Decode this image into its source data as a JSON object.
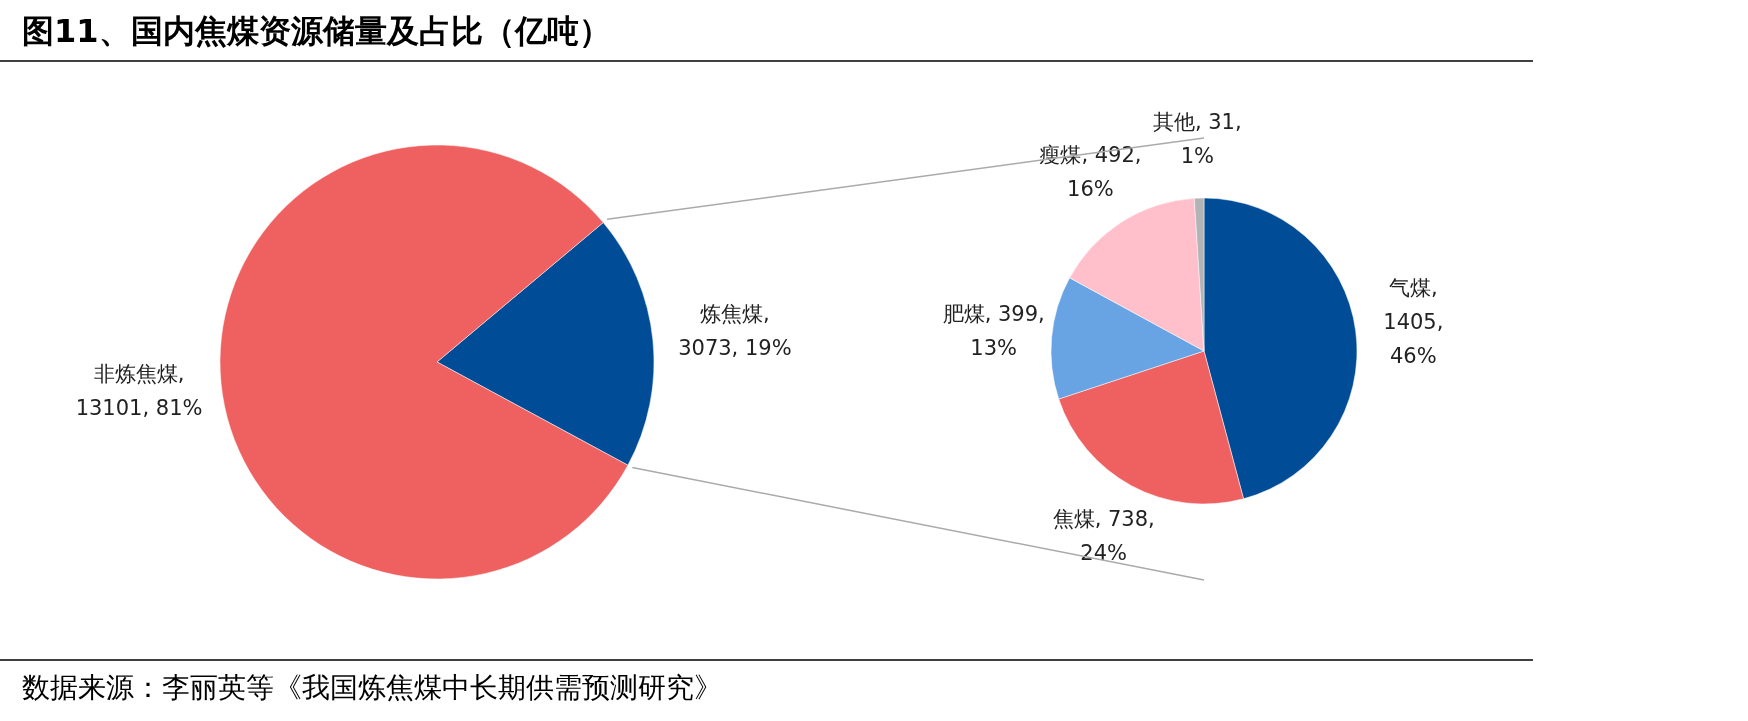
{
  "chart_data": [
    {
      "type": "pie",
      "title": "图11、国内焦煤资源储量及占比（亿吨）",
      "categories": [
        "炼焦煤",
        "非炼焦煤"
      ],
      "values": [
        3073,
        13101
      ],
      "value_labels": [
        ",\n3073, 19%",
        ",\n13101, 81%"
      ],
      "colors": [
        "#004c97",
        "#ef6060"
      ],
      "annotations": [
        "数据来源：李丽英等《我国炼焦煤中长期供需预测研究》"
      ]
    },
    {
      "type": "pie",
      "categories": [
        "气煤",
        "焦煤",
        "肥煤",
        "瘦煤",
        "其他"
      ],
      "values": [
        1405,
        738,
        399,
        492,
        31
      ],
      "value_labels": [
        ",\n1405,\n46%",
        ", 738,\n24%",
        ", 399,\n13%",
        ", 492,\n16%",
        ", 31,\n1%"
      ],
      "colors": [
        "#004c97",
        "#ef6060",
        "#68a4e4",
        "#ffbfcb",
        "#b3b3b3"
      ]
    }
  ]
}
